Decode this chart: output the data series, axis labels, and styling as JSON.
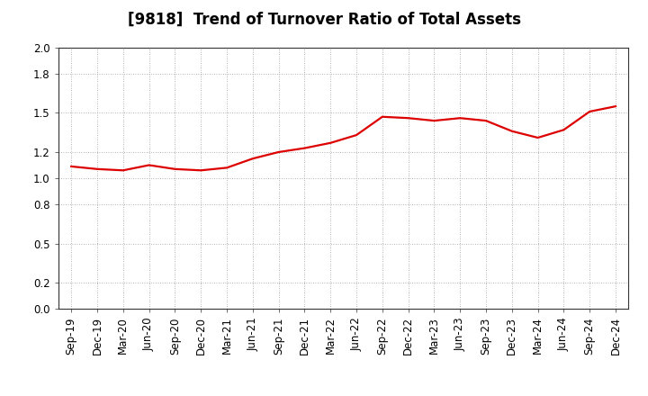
{
  "title": "[9818]  Trend of Turnover Ratio of Total Assets",
  "labels": [
    "Sep-19",
    "Dec-19",
    "Mar-20",
    "Jun-20",
    "Sep-20",
    "Dec-20",
    "Mar-21",
    "Jun-21",
    "Sep-21",
    "Dec-21",
    "Mar-22",
    "Jun-22",
    "Sep-22",
    "Dec-22",
    "Mar-23",
    "Jun-23",
    "Sep-23",
    "Dec-23",
    "Mar-24",
    "Jun-24",
    "Sep-24",
    "Dec-24"
  ],
  "values": [
    1.09,
    1.07,
    1.06,
    1.1,
    1.07,
    1.06,
    1.08,
    1.15,
    1.2,
    1.23,
    1.27,
    1.33,
    1.47,
    1.46,
    1.44,
    1.46,
    1.44,
    1.36,
    1.31,
    1.37,
    1.51,
    1.55
  ],
  "line_color": "#dd0000",
  "line_width": 1.6,
  "ylim": [
    0.0,
    2.0
  ],
  "yticks": [
    0.0,
    0.2,
    0.5,
    0.8,
    1.0,
    1.2,
    1.5,
    1.8,
    2.0
  ],
  "background_color": "#ffffff",
  "grid_color": "#999999",
  "title_fontsize": 12,
  "tick_fontsize": 8.5
}
